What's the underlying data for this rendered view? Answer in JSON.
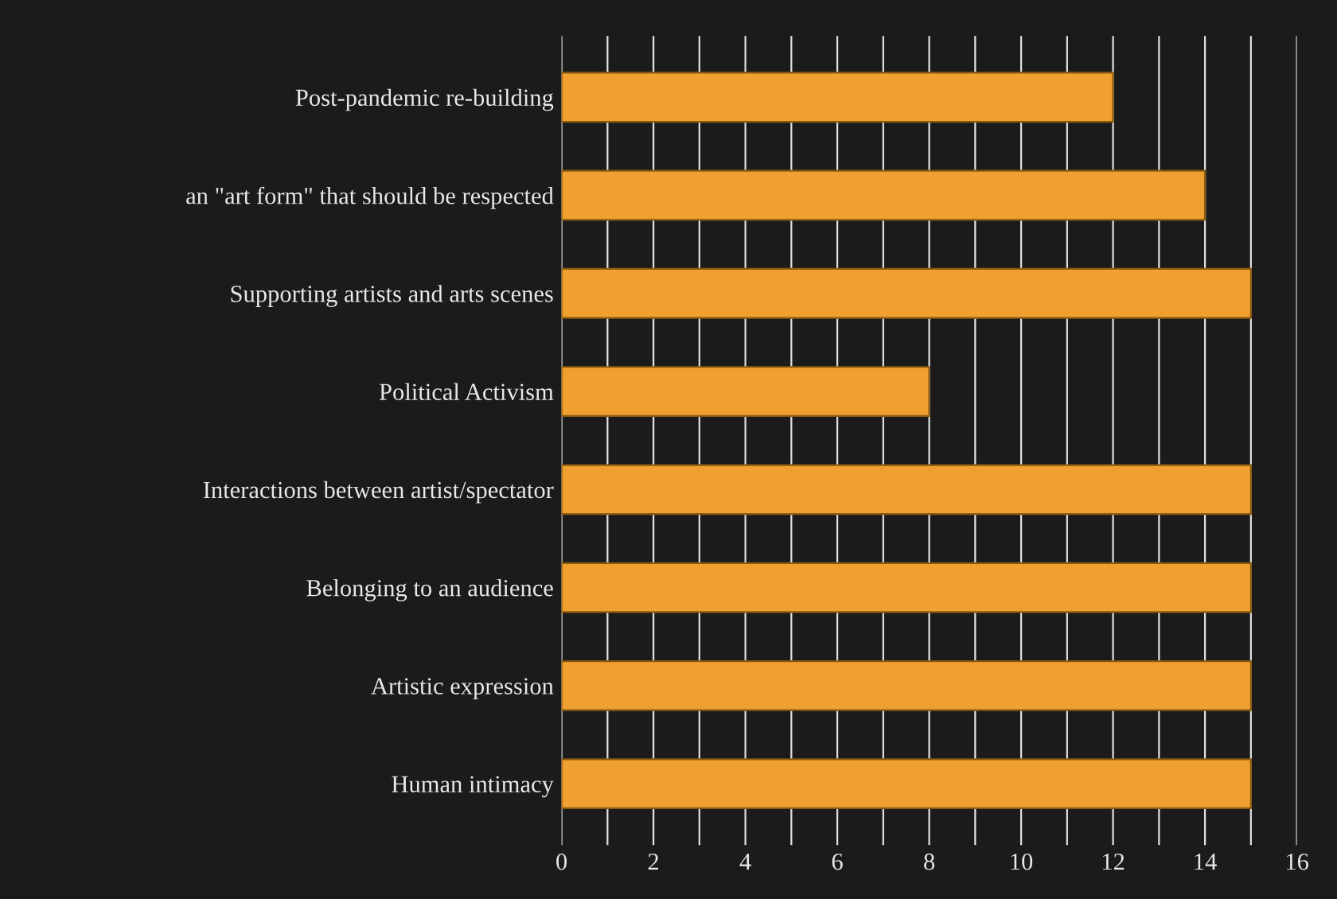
{
  "chart_data": {
    "type": "bar",
    "orientation": "horizontal",
    "categories": [
      "Post-pandemic re-building",
      "an \"art form\" that should be respected",
      "Supporting artists and arts scenes",
      "Political Activism",
      "Interactions between artist/spectator",
      "Belonging to an audience",
      "Artistic expression",
      "Human intimacy"
    ],
    "values": [
      12,
      14,
      15,
      8,
      15,
      15,
      15,
      15
    ],
    "color": "#f0a030",
    "xlim": [
      0,
      16
    ],
    "xticks": [
      0,
      {
        "value": 1,
        "label": null
      },
      2,
      {
        "value": 3,
        "label": null
      },
      4,
      {
        "value": 5,
        "label": null
      },
      6,
      {
        "value": 7,
        "label": null
      },
      8,
      {
        "value": 9,
        "label": null
      },
      10,
      {
        "value": 11,
        "label": null
      },
      12,
      {
        "value": 13,
        "label": null
      },
      14,
      {
        "value": 15,
        "label": null
      },
      16
    ],
    "grid": "x"
  }
}
